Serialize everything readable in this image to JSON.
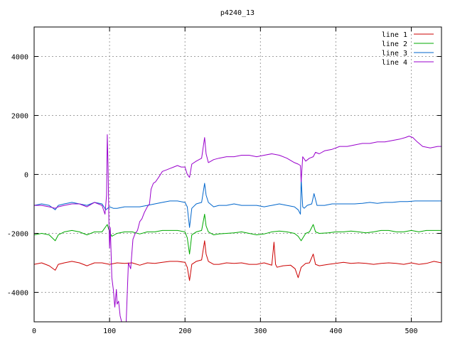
{
  "chart_data": {
    "type": "line",
    "title": "p4240_13",
    "xlabel": "",
    "ylabel": "",
    "xlim": [
      0,
      540
    ],
    "ylim": [
      -5000,
      5000
    ],
    "xticks": [
      0,
      100,
      200,
      300,
      400,
      500
    ],
    "yticks": [
      -4000,
      -2000,
      0,
      2000,
      4000
    ],
    "xtick_labels": [
      "0",
      "100",
      "200",
      "300",
      "400",
      "500"
    ],
    "ytick_labels": [
      "-4000",
      "-2000",
      "0",
      "2000",
      "4000"
    ],
    "grid": true,
    "grid_style": "dotted",
    "legend_position": "top-right",
    "series": [
      {
        "name": "line 1",
        "color": "#cc0000",
        "x": [
          0,
          10,
          20,
          28,
          32,
          40,
          50,
          60,
          70,
          80,
          90,
          100,
          110,
          120,
          130,
          140,
          150,
          160,
          170,
          180,
          190,
          200,
          203,
          206,
          209,
          215,
          222,
          226,
          228,
          231,
          238,
          245,
          255,
          265,
          275,
          285,
          295,
          305,
          315,
          318,
          320,
          322,
          330,
          340,
          346,
          350,
          354,
          360,
          365,
          370,
          373,
          378,
          390,
          400,
          410,
          420,
          430,
          440,
          450,
          460,
          470,
          480,
          490,
          500,
          510,
          520,
          530,
          540
        ],
        "y": [
          -3050,
          -3000,
          -3100,
          -3250,
          -3050,
          -3000,
          -2950,
          -3000,
          -3100,
          -3000,
          -3000,
          -3050,
          -3000,
          -3020,
          -3000,
          -3080,
          -3000,
          -3020,
          -2980,
          -2950,
          -2950,
          -2980,
          -3150,
          -3600,
          -3050,
          -2950,
          -2900,
          -2250,
          -2700,
          -2950,
          -3050,
          -3050,
          -3000,
          -3020,
          -3000,
          -3050,
          -3050,
          -3000,
          -3080,
          -2300,
          -3050,
          -3150,
          -3100,
          -3080,
          -3200,
          -3500,
          -3150,
          -3020,
          -3000,
          -2700,
          -3050,
          -3100,
          -3050,
          -3020,
          -2980,
          -3020,
          -3000,
          -3020,
          -3050,
          -3020,
          -3000,
          -3020,
          -3050,
          -3000,
          -3050,
          -3020,
          -2950,
          -3000
        ]
      },
      {
        "name": "line 2",
        "color": "#00aa00",
        "x": [
          0,
          10,
          20,
          28,
          32,
          40,
          50,
          60,
          70,
          80,
          90,
          97,
          100,
          103,
          110,
          120,
          130,
          140,
          150,
          160,
          170,
          180,
          190,
          200,
          203,
          206,
          209,
          215,
          222,
          226,
          228,
          231,
          238,
          245,
          255,
          265,
          275,
          285,
          295,
          305,
          315,
          325,
          335,
          345,
          350,
          354,
          360,
          365,
          370,
          373,
          378,
          390,
          400,
          410,
          420,
          430,
          440,
          450,
          460,
          470,
          480,
          490,
          500,
          510,
          520,
          530,
          540
        ],
        "y": [
          -2050,
          -2000,
          -2050,
          -2250,
          -2050,
          -1950,
          -1900,
          -1950,
          -2050,
          -1950,
          -1950,
          -1700,
          -1950,
          -2100,
          -2000,
          -1950,
          -1950,
          -2020,
          -1950,
          -1950,
          -1900,
          -1900,
          -1900,
          -1950,
          -2150,
          -2700,
          -2050,
          -1950,
          -1900,
          -1350,
          -1750,
          -1950,
          -2050,
          -2020,
          -2000,
          -1980,
          -1950,
          -2000,
          -2050,
          -2020,
          -1950,
          -1920,
          -1950,
          -2000,
          -2100,
          -2250,
          -2000,
          -1950,
          -1700,
          -1950,
          -2000,
          -1980,
          -1950,
          -1950,
          -1920,
          -1950,
          -1980,
          -1950,
          -1900,
          -1900,
          -1950,
          -1950,
          -1900,
          -1950,
          -1900,
          -1900,
          -1900
        ]
      },
      {
        "name": "line 3",
        "color": "#0066cc",
        "x": [
          0,
          10,
          20,
          28,
          32,
          40,
          50,
          60,
          70,
          80,
          90,
          95,
          100,
          105,
          110,
          120,
          130,
          140,
          150,
          160,
          170,
          180,
          190,
          200,
          203,
          206,
          209,
          215,
          222,
          226,
          228,
          231,
          238,
          245,
          255,
          265,
          275,
          285,
          295,
          305,
          315,
          325,
          335,
          345,
          350,
          353,
          354,
          356,
          358,
          362,
          368,
          371,
          375,
          385,
          395,
          405,
          415,
          425,
          435,
          445,
          455,
          465,
          475,
          485,
          495,
          505,
          515,
          525,
          540
        ],
        "y": [
          -1050,
          -1000,
          -1050,
          -1200,
          -1050,
          -1000,
          -950,
          -1000,
          -1050,
          -950,
          -1000,
          -1200,
          -1100,
          -1150,
          -1150,
          -1100,
          -1100,
          -1100,
          -1050,
          -1000,
          -950,
          -900,
          -900,
          -950,
          -1100,
          -1800,
          -1150,
          -1000,
          -950,
          -300,
          -700,
          -950,
          -1100,
          -1050,
          -1050,
          -1000,
          -1050,
          -1050,
          -1050,
          -1100,
          -1050,
          -1000,
          -1050,
          -1100,
          -1200,
          -1350,
          -150,
          -1100,
          -1150,
          -1050,
          -1000,
          -650,
          -1050,
          -1050,
          -1000,
          -1000,
          -1000,
          -1000,
          -980,
          -950,
          -980,
          -950,
          -950,
          -920,
          -920,
          -900,
          -900,
          -900,
          -900
        ]
      },
      {
        "name": "line 4",
        "color": "#9900cc",
        "x": [
          0,
          10,
          20,
          28,
          32,
          40,
          50,
          60,
          70,
          80,
          90,
          94,
          96,
          97,
          98,
          99,
          100,
          101,
          103,
          105,
          107,
          109,
          110,
          112,
          114,
          116,
          118,
          120,
          122,
          125,
          128,
          131,
          134,
          137,
          140,
          143,
          146,
          150,
          153,
          155,
          158,
          161,
          165,
          170,
          175,
          180,
          185,
          190,
          195,
          200,
          203,
          206,
          209,
          215,
          222,
          226,
          228,
          231,
          238,
          245,
          255,
          265,
          275,
          285,
          295,
          305,
          315,
          325,
          335,
          345,
          350,
          353,
          354,
          356,
          360,
          365,
          370,
          373,
          378,
          385,
          395,
          405,
          415,
          425,
          435,
          445,
          455,
          465,
          475,
          485,
          492,
          497,
          502,
          508,
          515,
          525,
          535,
          540
        ],
        "y": [
          -1050,
          -1050,
          -1100,
          -1150,
          -1100,
          -1050,
          -1000,
          -1000,
          -1100,
          -950,
          -1050,
          -1350,
          -700,
          1350,
          300,
          -1500,
          -2500,
          -1800,
          -3500,
          -3900,
          -4500,
          -3900,
          -4400,
          -4300,
          -4800,
          -5000,
          -5000,
          -5000,
          -5000,
          -3000,
          -3200,
          -2200,
          -2000,
          -1900,
          -1600,
          -1500,
          -1300,
          -1100,
          -1000,
          -500,
          -300,
          -250,
          -100,
          100,
          150,
          200,
          250,
          300,
          250,
          250,
          0,
          -100,
          350,
          450,
          550,
          1250,
          700,
          400,
          500,
          550,
          600,
          600,
          650,
          650,
          600,
          650,
          700,
          650,
          550,
          400,
          350,
          300,
          -250,
          600,
          450,
          550,
          600,
          750,
          700,
          800,
          850,
          950,
          950,
          1000,
          1050,
          1050,
          1100,
          1100,
          1150,
          1200,
          1250,
          1300,
          1250,
          1100,
          950,
          900,
          950,
          950
        ]
      }
    ]
  }
}
